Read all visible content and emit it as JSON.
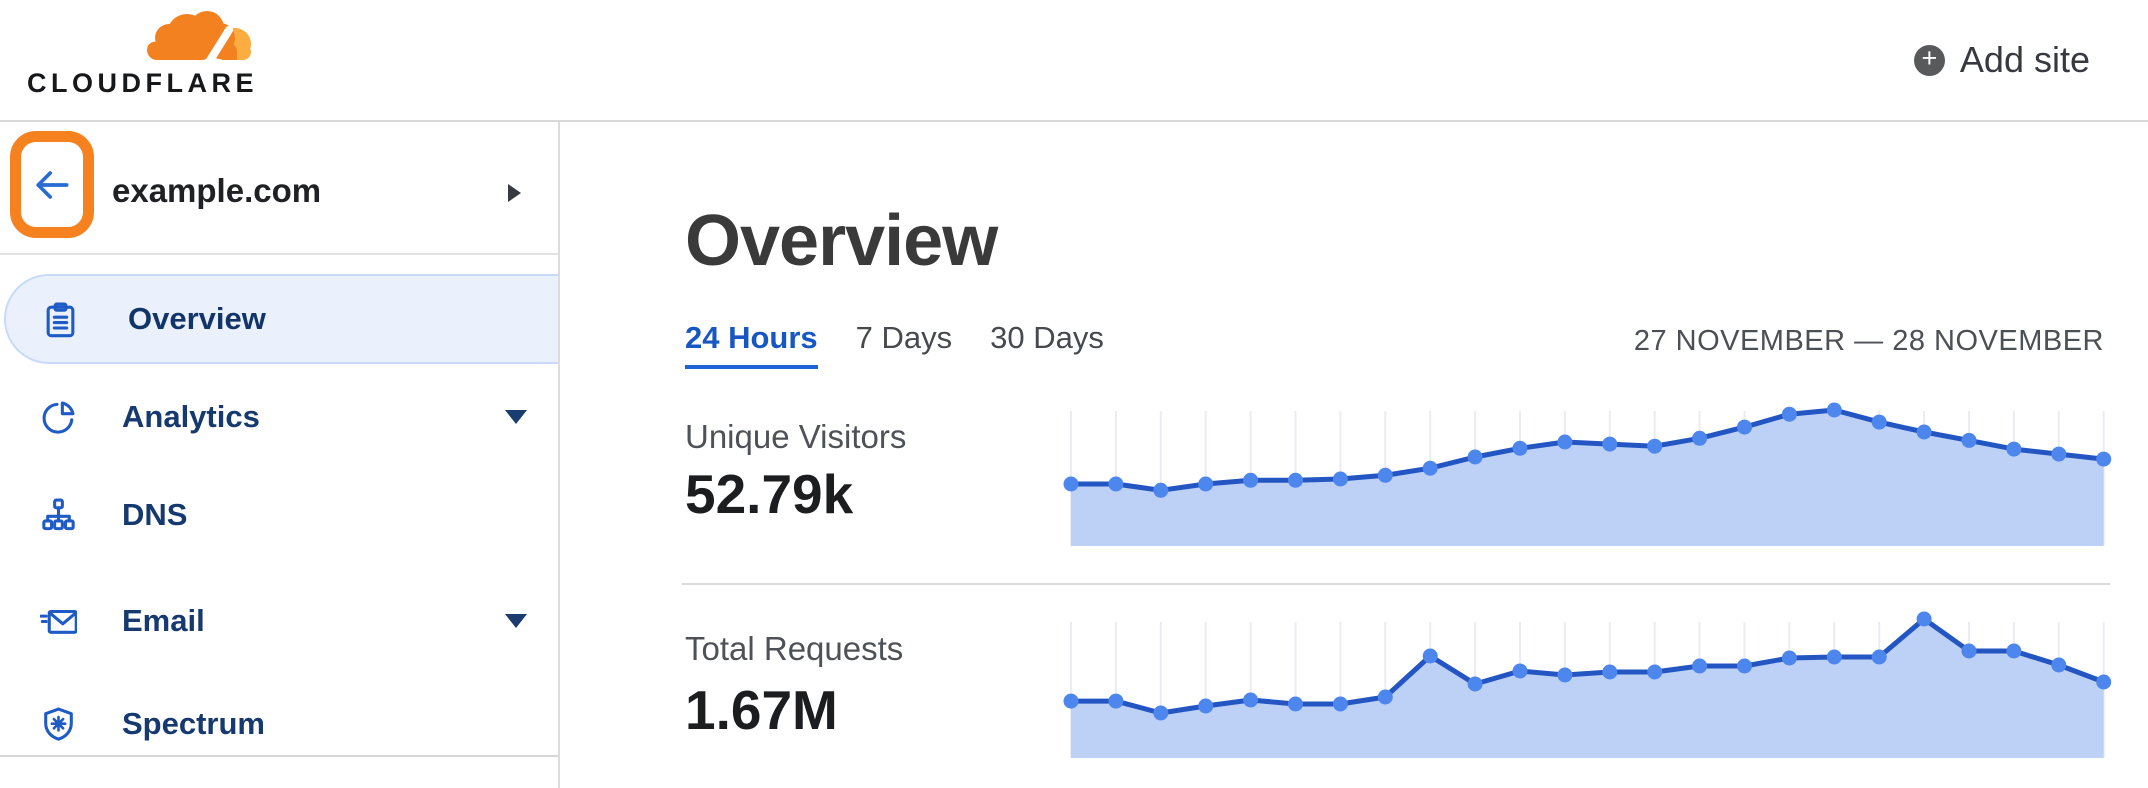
{
  "topbar": {
    "brand": "CLOUDFLARE",
    "add_site_label": "Add site"
  },
  "sidebar": {
    "site": "example.com",
    "items": [
      {
        "label": "Overview",
        "icon": "clipboard-icon",
        "active": true,
        "caret": false
      },
      {
        "label": "Analytics",
        "icon": "pie-chart-icon",
        "active": false,
        "caret": true
      },
      {
        "label": "DNS",
        "icon": "dns-tree-icon",
        "active": false,
        "caret": false
      },
      {
        "label": "Email",
        "icon": "email-icon",
        "active": false,
        "caret": true
      },
      {
        "label": "Spectrum",
        "icon": "shield-icon",
        "active": false,
        "caret": false
      }
    ]
  },
  "main": {
    "title": "Overview",
    "tabs": [
      {
        "label": "24 Hours",
        "active": true
      },
      {
        "label": "7 Days",
        "active": false
      },
      {
        "label": "30 Days",
        "active": false
      }
    ],
    "date_range": "27 NOVEMBER — 28 NOVEMBER",
    "stats": [
      {
        "label": "Unique Visitors",
        "value": "52.79k"
      },
      {
        "label": "Total Requests",
        "value": "1.67M"
      }
    ]
  },
  "colors": {
    "accent_orange": "#f6821f",
    "logo_orange": "#f48120",
    "logo_light_orange": "#fbad41",
    "active_tab_blue": "#1657c2",
    "nav_navy": "#16396f",
    "nav_icon_blue": "#1f5bc4",
    "active_pill_bg": "#eaf1fc",
    "chart_line": "#2356c2",
    "chart_dot": "#4d86ec",
    "chart_fill": "#bcd1f5",
    "chart_grid": "#e9ecf3"
  },
  "chart_data": [
    {
      "type": "area",
      "title": "Unique Visitors",
      "total_label": "52.79k",
      "period": "24 Hours",
      "date_range": "27 NOVEMBER — 28 NOVEMBER",
      "xlabel": "hour of period (unlabeled on axis)",
      "ylabel": "unique visitors per interval (unlabeled on axis)",
      "x": [
        1,
        2,
        3,
        4,
        5,
        6,
        7,
        8,
        9,
        10,
        11,
        12,
        13,
        14,
        15,
        16,
        17,
        18,
        19,
        20,
        21,
        22,
        23,
        24
      ],
      "values": [
        1490,
        1490,
        1340,
        1490,
        1580,
        1580,
        1610,
        1700,
        1870,
        2140,
        2350,
        2500,
        2450,
        2400,
        2590,
        2860,
        3170,
        3270,
        2980,
        2740,
        2540,
        2330,
        2210,
        2090
      ],
      "ylim": [
        0,
        3500
      ],
      "grid": "vertical-only",
      "legend": "none"
    },
    {
      "type": "area",
      "title": "Total Requests",
      "total_label": "1.67M",
      "period": "24 Hours",
      "date_range": "27 NOVEMBER — 28 NOVEMBER",
      "xlabel": "hour of period (unlabeled on axis)",
      "ylabel": "requests per interval (unlabeled on axis)",
      "x": [
        1,
        2,
        3,
        4,
        5,
        6,
        7,
        8,
        9,
        10,
        11,
        12,
        13,
        14,
        15,
        16,
        17,
        18,
        19,
        20,
        21,
        22,
        23,
        24
      ],
      "values": [
        48400,
        48400,
        38300,
        44200,
        49300,
        45900,
        45900,
        51900,
        86700,
        62900,
        74000,
        70600,
        73100,
        73100,
        78200,
        78200,
        85000,
        85900,
        85900,
        118200,
        91000,
        91000,
        79100,
        64600
      ],
      "ylim": [
        0,
        135000
      ],
      "grid": "vertical-only",
      "legend": "none"
    }
  ]
}
